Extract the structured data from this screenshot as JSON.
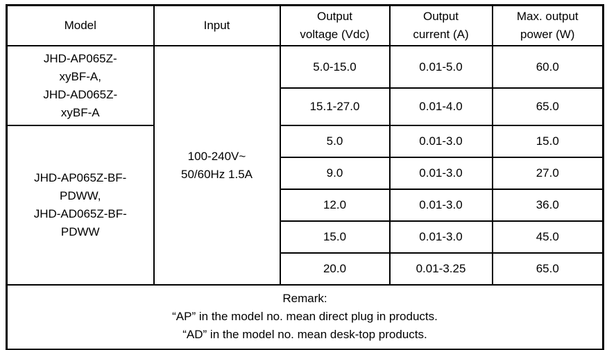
{
  "table": {
    "headers": {
      "model": "Model",
      "input": "Input",
      "voltage_lines": [
        "Output",
        "voltage (Vdc)"
      ],
      "current_lines": [
        "Output",
        "current (A)"
      ],
      "power_lines": [
        "Max. output",
        "power (W)"
      ]
    },
    "model_groups": [
      {
        "lines": [
          "JHD-AP065Z-",
          "xyBF-A,",
          "JHD-AD065Z-",
          "xyBF-A"
        ]
      },
      {
        "lines": [
          "JHD-AP065Z-BF-",
          "PDWW,",
          "JHD-AD065Z-BF-",
          "PDWW"
        ]
      }
    ],
    "input_lines": [
      "100-240V~",
      "50/60Hz 1.5A"
    ],
    "rows": [
      {
        "voltage": "5.0-15.0",
        "current": "0.01-5.0",
        "power": "60.0"
      },
      {
        "voltage": "15.1-27.0",
        "current": "0.01-4.0",
        "power": "65.0"
      },
      {
        "voltage": "5.0",
        "current": "0.01-3.0",
        "power": "15.0"
      },
      {
        "voltage": "9.0",
        "current": "0.01-3.0",
        "power": "27.0"
      },
      {
        "voltage": "12.0",
        "current": "0.01-3.0",
        "power": "36.0"
      },
      {
        "voltage": "15.0",
        "current": "0.01-3.0",
        "power": "45.0"
      },
      {
        "voltage": "20.0",
        "current": "0.01-3.25",
        "power": "65.0"
      }
    ],
    "remark_lines": [
      "Remark:",
      "“AP” in the model no. mean direct plug in products.",
      "“AD” in the model no. mean desk-top products."
    ]
  },
  "colors": {
    "border": "#000000",
    "text": "#000000",
    "background": "#ffffff"
  }
}
